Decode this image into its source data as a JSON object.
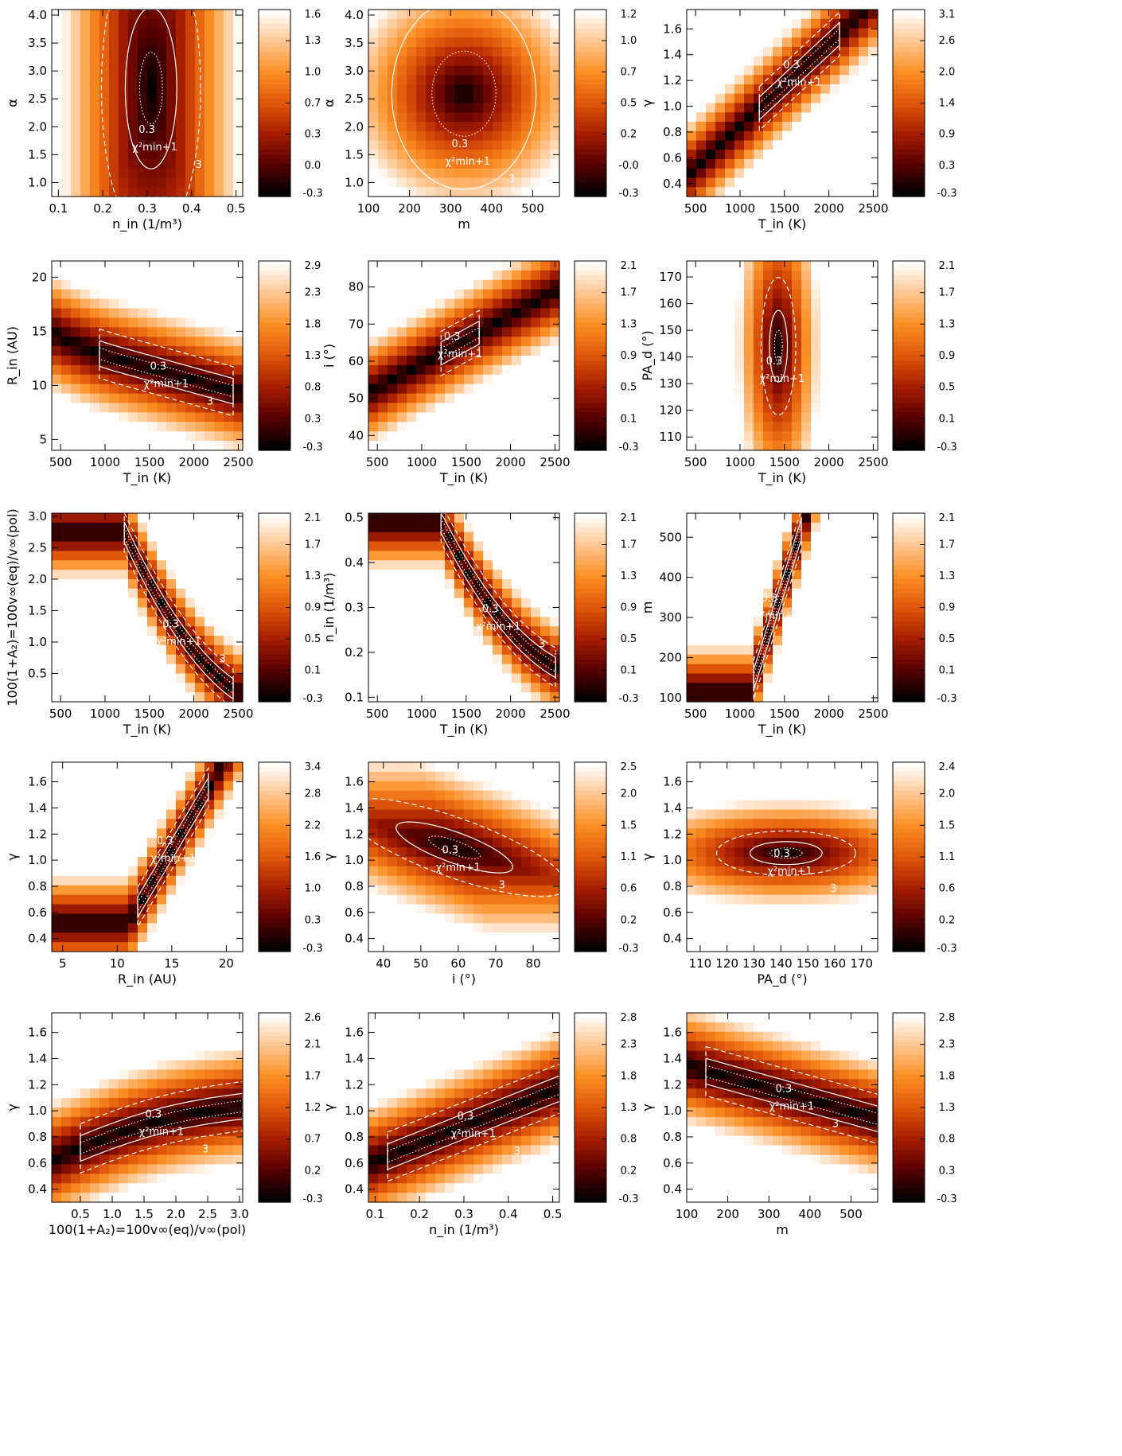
{
  "colors": {
    "colormap": [
      "#000000",
      "#5a0000",
      "#a81e00",
      "#e0570a",
      "#fb8f24",
      "#ffc58e",
      "#ffffff"
    ],
    "contour": "#ffffff",
    "frame": "#000000"
  },
  "contour_labels": {
    "sigma1": "0.3",
    "chi_min_plus_1": "χ²min+1",
    "level3": "3"
  },
  "chart_data": [
    {
      "type": "heatmap",
      "xlabel": "n_in (1/m³)",
      "ylabel": "α",
      "xlim": [
        0.085,
        0.515
      ],
      "ylim": [
        0.75,
        4.1
      ],
      "xticks": [
        "0.1",
        "0.2",
        "0.3",
        "0.4",
        "0.5"
      ],
      "xtickvals": [
        0.1,
        0.2,
        0.3,
        0.4,
        0.5
      ],
      "yticks": [
        "1.0",
        "1.5",
        "2.0",
        "2.5",
        "3.0",
        "3.5",
        "4.0"
      ],
      "ytickvals": [
        1.0,
        1.5,
        2.0,
        2.5,
        3.0,
        3.5,
        4.0
      ],
      "colorbar_ticks": [
        "1.6",
        "1.3",
        "1.0",
        "0.7",
        "0.3",
        "0.0",
        "-0.3"
      ],
      "best_fit": {
        "x": 0.3,
        "y": 2.5
      }
    },
    {
      "type": "heatmap",
      "xlabel": "m",
      "ylabel": "α",
      "xlim": [
        100,
        565
      ],
      "ylim": [
        0.75,
        4.1
      ],
      "xticks": [
        "100",
        "200",
        "300",
        "400",
        "500"
      ],
      "xtickvals": [
        100,
        200,
        300,
        400,
        500
      ],
      "yticks": [
        "1.0",
        "1.5",
        "2.0",
        "2.5",
        "3.0",
        "3.5",
        "4.0"
      ],
      "ytickvals": [
        1.0,
        1.5,
        2.0,
        2.5,
        3.0,
        3.5,
        4.0
      ],
      "colorbar_ticks": [
        "1.2",
        "1.0",
        "0.7",
        "0.5",
        "0.2",
        "-0.0",
        "-0.3"
      ],
      "best_fit": {
        "x": 330,
        "y": 2.5
      }
    },
    {
      "type": "heatmap",
      "xlabel": "T_in (K)",
      "ylabel": "γ",
      "xlim": [
        400,
        2550
      ],
      "ylim": [
        0.3,
        1.75
      ],
      "xticks": [
        "500",
        "1000",
        "1500",
        "2000",
        "2500"
      ],
      "xtickvals": [
        500,
        1000,
        1500,
        2000,
        2500
      ],
      "yticks": [
        "0.4",
        "0.6",
        "0.8",
        "1.0",
        "1.2",
        "1.4",
        "1.6"
      ],
      "ytickvals": [
        0.4,
        0.6,
        0.8,
        1.0,
        1.2,
        1.4,
        1.6
      ],
      "colorbar_ticks": [
        "3.1",
        "2.6",
        "2.0",
        "1.4",
        "0.9",
        "0.3",
        "-0.3"
      ],
      "best_fit": {
        "x": 1500,
        "y": 1.05
      }
    },
    {
      "type": "heatmap",
      "xlabel": "T_in (K)",
      "ylabel": "R_in (AU)",
      "xlim": [
        400,
        2550
      ],
      "ylim": [
        4,
        21.5
      ],
      "xticks": [
        "500",
        "1000",
        "1500",
        "2000",
        "2500"
      ],
      "xtickvals": [
        500,
        1000,
        1500,
        2000,
        2500
      ],
      "yticks": [
        "5",
        "10",
        "15",
        "20"
      ],
      "ytickvals": [
        5,
        10,
        15,
        20
      ],
      "colorbar_ticks": [
        "2.9",
        "2.3",
        "1.8",
        "1.3",
        "0.8",
        "0.3",
        "-0.3"
      ],
      "best_fit": {
        "x": 1750,
        "y": 12
      }
    },
    {
      "type": "heatmap",
      "xlabel": "T_in (K)",
      "ylabel": "i (°)",
      "xlim": [
        400,
        2550
      ],
      "ylim": [
        36,
        87
      ],
      "xticks": [
        "500",
        "1000",
        "1500",
        "2000",
        "2500"
      ],
      "xtickvals": [
        500,
        1000,
        1500,
        2000,
        2500
      ],
      "yticks": [
        "40",
        "50",
        "60",
        "70",
        "80"
      ],
      "ytickvals": [
        40,
        50,
        60,
        70,
        80
      ],
      "colorbar_ticks": [
        "2.1",
        "1.7",
        "1.3",
        "0.9",
        "0.5",
        "0.1",
        "-0.3"
      ],
      "best_fit": {
        "x": 1500,
        "y": 61
      }
    },
    {
      "type": "heatmap",
      "xlabel": "T_in (K)",
      "ylabel": "PA_d (°)",
      "xlim": [
        400,
        2550
      ],
      "ylim": [
        105,
        176
      ],
      "xticks": [
        "500",
        "1000",
        "1500",
        "2000",
        "2500"
      ],
      "xtickvals": [
        500,
        1000,
        1500,
        2000,
        2500
      ],
      "yticks": [
        "110",
        "120",
        "130",
        "140",
        "150",
        "160",
        "170"
      ],
      "ytickvals": [
        110,
        120,
        130,
        140,
        150,
        160,
        170
      ],
      "colorbar_ticks": [
        "2.1",
        "1.7",
        "1.3",
        "0.9",
        "0.5",
        "0.1",
        "-0.3"
      ],
      "best_fit": {
        "x": 1480,
        "y": 140
      }
    },
    {
      "type": "heatmap",
      "xlabel": "T_in (K)",
      "ylabel": "100(1+A₂)=100v∞(eq)/v∞(pol)",
      "xlim": [
        400,
        2550
      ],
      "ylim": [
        0.05,
        3.05
      ],
      "xticks": [
        "500",
        "1000",
        "1500",
        "2000",
        "2500"
      ],
      "xtickvals": [
        500,
        1000,
        1500,
        2000,
        2500
      ],
      "yticks": [
        "0.5",
        "1.0",
        "1.5",
        "2.0",
        "2.5",
        "3.0"
      ],
      "ytickvals": [
        0.5,
        1.0,
        1.5,
        2.0,
        2.5,
        3.0
      ],
      "colorbar_ticks": [
        "2.1",
        "1.7",
        "1.3",
        "0.9",
        "0.5",
        "0.1",
        "-0.3"
      ],
      "best_fit": {
        "x": 1700,
        "y": 0.9
      }
    },
    {
      "type": "heatmap",
      "xlabel": "T_in (K)",
      "ylabel": "n_in (1/m³)",
      "xlim": [
        400,
        2550
      ],
      "ylim": [
        0.09,
        0.51
      ],
      "xticks": [
        "500",
        "1000",
        "1500",
        "2000",
        "2500"
      ],
      "xtickvals": [
        500,
        1000,
        1500,
        2000,
        2500
      ],
      "yticks": [
        "0.1",
        "0.2",
        "0.3",
        "0.4",
        "0.5"
      ],
      "ytickvals": [
        0.1,
        0.2,
        0.3,
        0.4,
        0.5
      ],
      "colorbar_ticks": [
        "2.1",
        "1.7",
        "1.3",
        "0.9",
        "0.5",
        "0.1",
        "-0.3"
      ],
      "best_fit": {
        "x": 1600,
        "y": 0.23
      }
    },
    {
      "type": "heatmap",
      "xlabel": "T_in (K)",
      "ylabel": "m",
      "xlim": [
        400,
        2550
      ],
      "ylim": [
        90,
        560
      ],
      "xticks": [
        "500",
        "1000",
        "1500",
        "2000",
        "2500"
      ],
      "xtickvals": [
        500,
        1000,
        1500,
        2000,
        2500
      ],
      "yticks": [
        "100",
        "200",
        "300",
        "400",
        "500"
      ],
      "ytickvals": [
        100,
        200,
        300,
        400,
        500
      ],
      "colorbar_ticks": [
        "2.1",
        "1.7",
        "1.3",
        "0.9",
        "0.5",
        "0.1",
        "-0.3"
      ],
      "best_fit": {
        "x": 1420,
        "y": 300
      }
    },
    {
      "type": "heatmap",
      "xlabel": "R_in (AU)",
      "ylabel": "γ",
      "xlim": [
        4,
        21.5
      ],
      "ylim": [
        0.3,
        1.75
      ],
      "xticks": [
        "5",
        "10",
        "15",
        "20"
      ],
      "xtickvals": [
        5,
        10,
        15,
        20
      ],
      "yticks": [
        "0.4",
        "0.6",
        "0.8",
        "1.0",
        "1.2",
        "1.4",
        "1.6"
      ],
      "ytickvals": [
        0.4,
        0.6,
        0.8,
        1.0,
        1.2,
        1.4,
        1.6
      ],
      "colorbar_ticks": [
        "3.4",
        "2.8",
        "2.2",
        "1.6",
        "1.0",
        "0.3",
        "-0.3"
      ],
      "best_fit": {
        "x": 13,
        "y": 1.1
      }
    },
    {
      "type": "heatmap",
      "xlabel": "i (°)",
      "ylabel": "γ",
      "xlim": [
        36,
        87
      ],
      "ylim": [
        0.3,
        1.75
      ],
      "xticks": [
        "40",
        "50",
        "60",
        "70",
        "80"
      ],
      "xtickvals": [
        40,
        50,
        60,
        70,
        80
      ],
      "yticks": [
        "0.4",
        "0.6",
        "0.8",
        "1.0",
        "1.2",
        "1.4",
        "1.6"
      ],
      "ytickvals": [
        0.4,
        0.6,
        0.8,
        1.0,
        1.2,
        1.4,
        1.6
      ],
      "colorbar_ticks": [
        "2.5",
        "2.0",
        "1.5",
        "1.1",
        "0.6",
        "0.2",
        "-0.3"
      ],
      "best_fit": {
        "x": 60,
        "y": 1.05
      }
    },
    {
      "type": "heatmap",
      "xlabel": "PA_d (°)",
      "ylabel": "γ",
      "xlim": [
        105,
        176
      ],
      "ylim": [
        0.3,
        1.75
      ],
      "xticks": [
        "110",
        "120",
        "130",
        "140",
        "150",
        "160",
        "170"
      ],
      "xtickvals": [
        110,
        120,
        130,
        140,
        150,
        160,
        170
      ],
      "yticks": [
        "0.4",
        "0.6",
        "0.8",
        "1.0",
        "1.2",
        "1.4",
        "1.6"
      ],
      "ytickvals": [
        0.4,
        0.6,
        0.8,
        1.0,
        1.2,
        1.4,
        1.6
      ],
      "colorbar_ticks": [
        "2.4",
        "2.0",
        "1.5",
        "1.1",
        "0.6",
        "0.2",
        "-0.3"
      ],
      "best_fit": {
        "x": 140,
        "y": 1.02
      }
    },
    {
      "type": "heatmap",
      "xlabel": "100(1+A₂)=100v∞(eq)/v∞(pol)",
      "ylabel": "γ",
      "xlim": [
        0.05,
        3.05
      ],
      "ylim": [
        0.3,
        1.75
      ],
      "xticks": [
        "0.5",
        "1.0",
        "1.5",
        "2.0",
        "2.5",
        "3.0"
      ],
      "xtickvals": [
        0.5,
        1.0,
        1.5,
        2.0,
        2.5,
        3.0
      ],
      "yticks": [
        "0.4",
        "0.6",
        "0.8",
        "1.0",
        "1.2",
        "1.4",
        "1.6"
      ],
      "ytickvals": [
        0.4,
        0.6,
        0.8,
        1.0,
        1.2,
        1.4,
        1.6
      ],
      "colorbar_ticks": [
        "2.6",
        "2.1",
        "1.7",
        "1.2",
        "0.7",
        "0.2",
        "-0.3"
      ],
      "best_fit": {
        "x": 1.6,
        "y": 1.0
      }
    },
    {
      "type": "heatmap",
      "xlabel": "n_in (1/m³)",
      "ylabel": "γ",
      "xlim": [
        0.085,
        0.515
      ],
      "ylim": [
        0.3,
        1.75
      ],
      "xticks": [
        "0.1",
        "0.2",
        "0.3",
        "0.4",
        "0.5"
      ],
      "xtickvals": [
        0.1,
        0.2,
        0.3,
        0.4,
        0.5
      ],
      "yticks": [
        "0.4",
        "0.6",
        "0.8",
        "1.0",
        "1.2",
        "1.4",
        "1.6"
      ],
      "ytickvals": [
        0.4,
        0.6,
        0.8,
        1.0,
        1.2,
        1.4,
        1.6
      ],
      "colorbar_ticks": [
        "2.8",
        "2.3",
        "1.8",
        "1.3",
        "0.8",
        "0.2",
        "-0.3"
      ],
      "best_fit": {
        "x": 0.33,
        "y": 1.02
      }
    },
    {
      "type": "heatmap",
      "xlabel": "m",
      "ylabel": "γ",
      "xlim": [
        100,
        565
      ],
      "ylim": [
        0.3,
        1.75
      ],
      "xticks": [
        "100",
        "200",
        "300",
        "400",
        "500"
      ],
      "xtickvals": [
        100,
        200,
        300,
        400,
        500
      ],
      "yticks": [
        "0.4",
        "0.6",
        "0.8",
        "1.0",
        "1.2",
        "1.4",
        "1.6"
      ],
      "ytickvals": [
        0.4,
        0.6,
        0.8,
        1.0,
        1.2,
        1.4,
        1.6
      ],
      "colorbar_ticks": [
        "2.8",
        "2.3",
        "1.8",
        "1.3",
        "0.8",
        "0.3",
        "-0.3"
      ],
      "best_fit": {
        "x": 350,
        "y": 1.0
      }
    }
  ]
}
